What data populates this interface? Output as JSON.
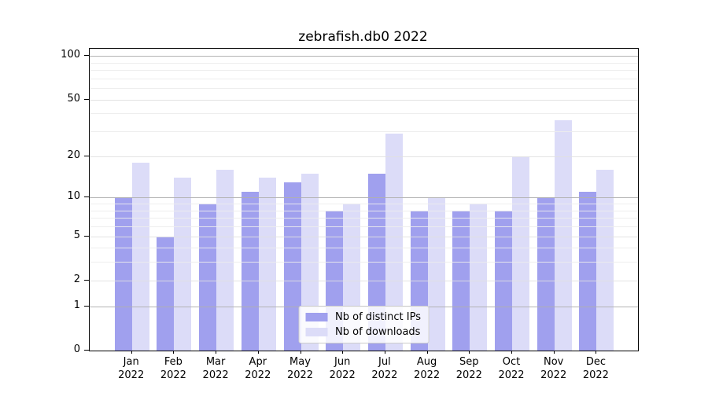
{
  "chart_data": {
    "type": "bar",
    "title": "zebrafish.db0 2022",
    "categories": [
      "Jan",
      "Feb",
      "Mar",
      "Apr",
      "May",
      "Jun",
      "Jul",
      "Aug",
      "Sep",
      "Oct",
      "Nov",
      "Dec"
    ],
    "year_label": "2022",
    "series": [
      {
        "name": "Nb of distinct IPs",
        "color": "#a0a0ee",
        "values": [
          10,
          5,
          9,
          11,
          13,
          8,
          15,
          8,
          8,
          8,
          10,
          11
        ]
      },
      {
        "name": "Nb of downloads",
        "color": "#dcdcf8",
        "values": [
          18,
          14,
          16,
          14,
          15,
          9,
          29,
          10,
          9,
          20,
          36,
          16
        ]
      }
    ],
    "y_scale": "log10(value+1)",
    "y_ticks": [
      0,
      1,
      2,
      5,
      10,
      20,
      50,
      100
    ],
    "y_minor_gridlines": [
      3,
      4,
      6,
      7,
      8,
      9,
      30,
      40,
      60,
      70,
      80,
      90
    ],
    "ylim": [
      0,
      112
    ],
    "grid": true,
    "legend_position": "lower center"
  }
}
